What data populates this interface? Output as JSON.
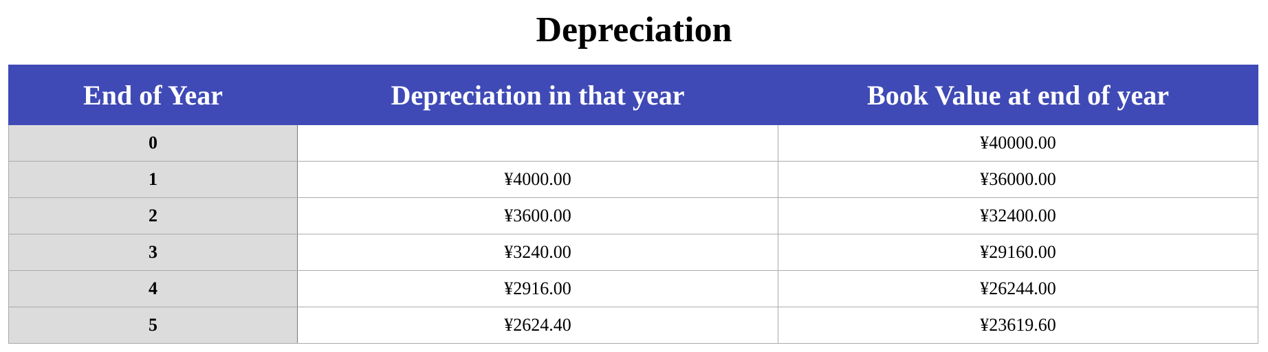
{
  "title": "Depreciation",
  "table": {
    "headers": [
      "End of Year",
      "Depreciation in that year",
      "Book Value at end of year"
    ],
    "rows": [
      {
        "year": "0",
        "depreciation": "",
        "book_value": "¥40000.00"
      },
      {
        "year": "1",
        "depreciation": "¥4000.00",
        "book_value": "¥36000.00"
      },
      {
        "year": "2",
        "depreciation": "¥3600.00",
        "book_value": "¥32400.00"
      },
      {
        "year": "3",
        "depreciation": "¥3240.00",
        "book_value": "¥29160.00"
      },
      {
        "year": "4",
        "depreciation": "¥2916.00",
        "book_value": "¥26244.00"
      },
      {
        "year": "5",
        "depreciation": "¥2624.40",
        "book_value": "¥23619.60"
      }
    ]
  },
  "colors": {
    "header_bg": "#3f4ab6",
    "header_text": "#ffffff",
    "year_col_bg": "#dcdcdc",
    "grid_line": "#aaaaaa"
  }
}
